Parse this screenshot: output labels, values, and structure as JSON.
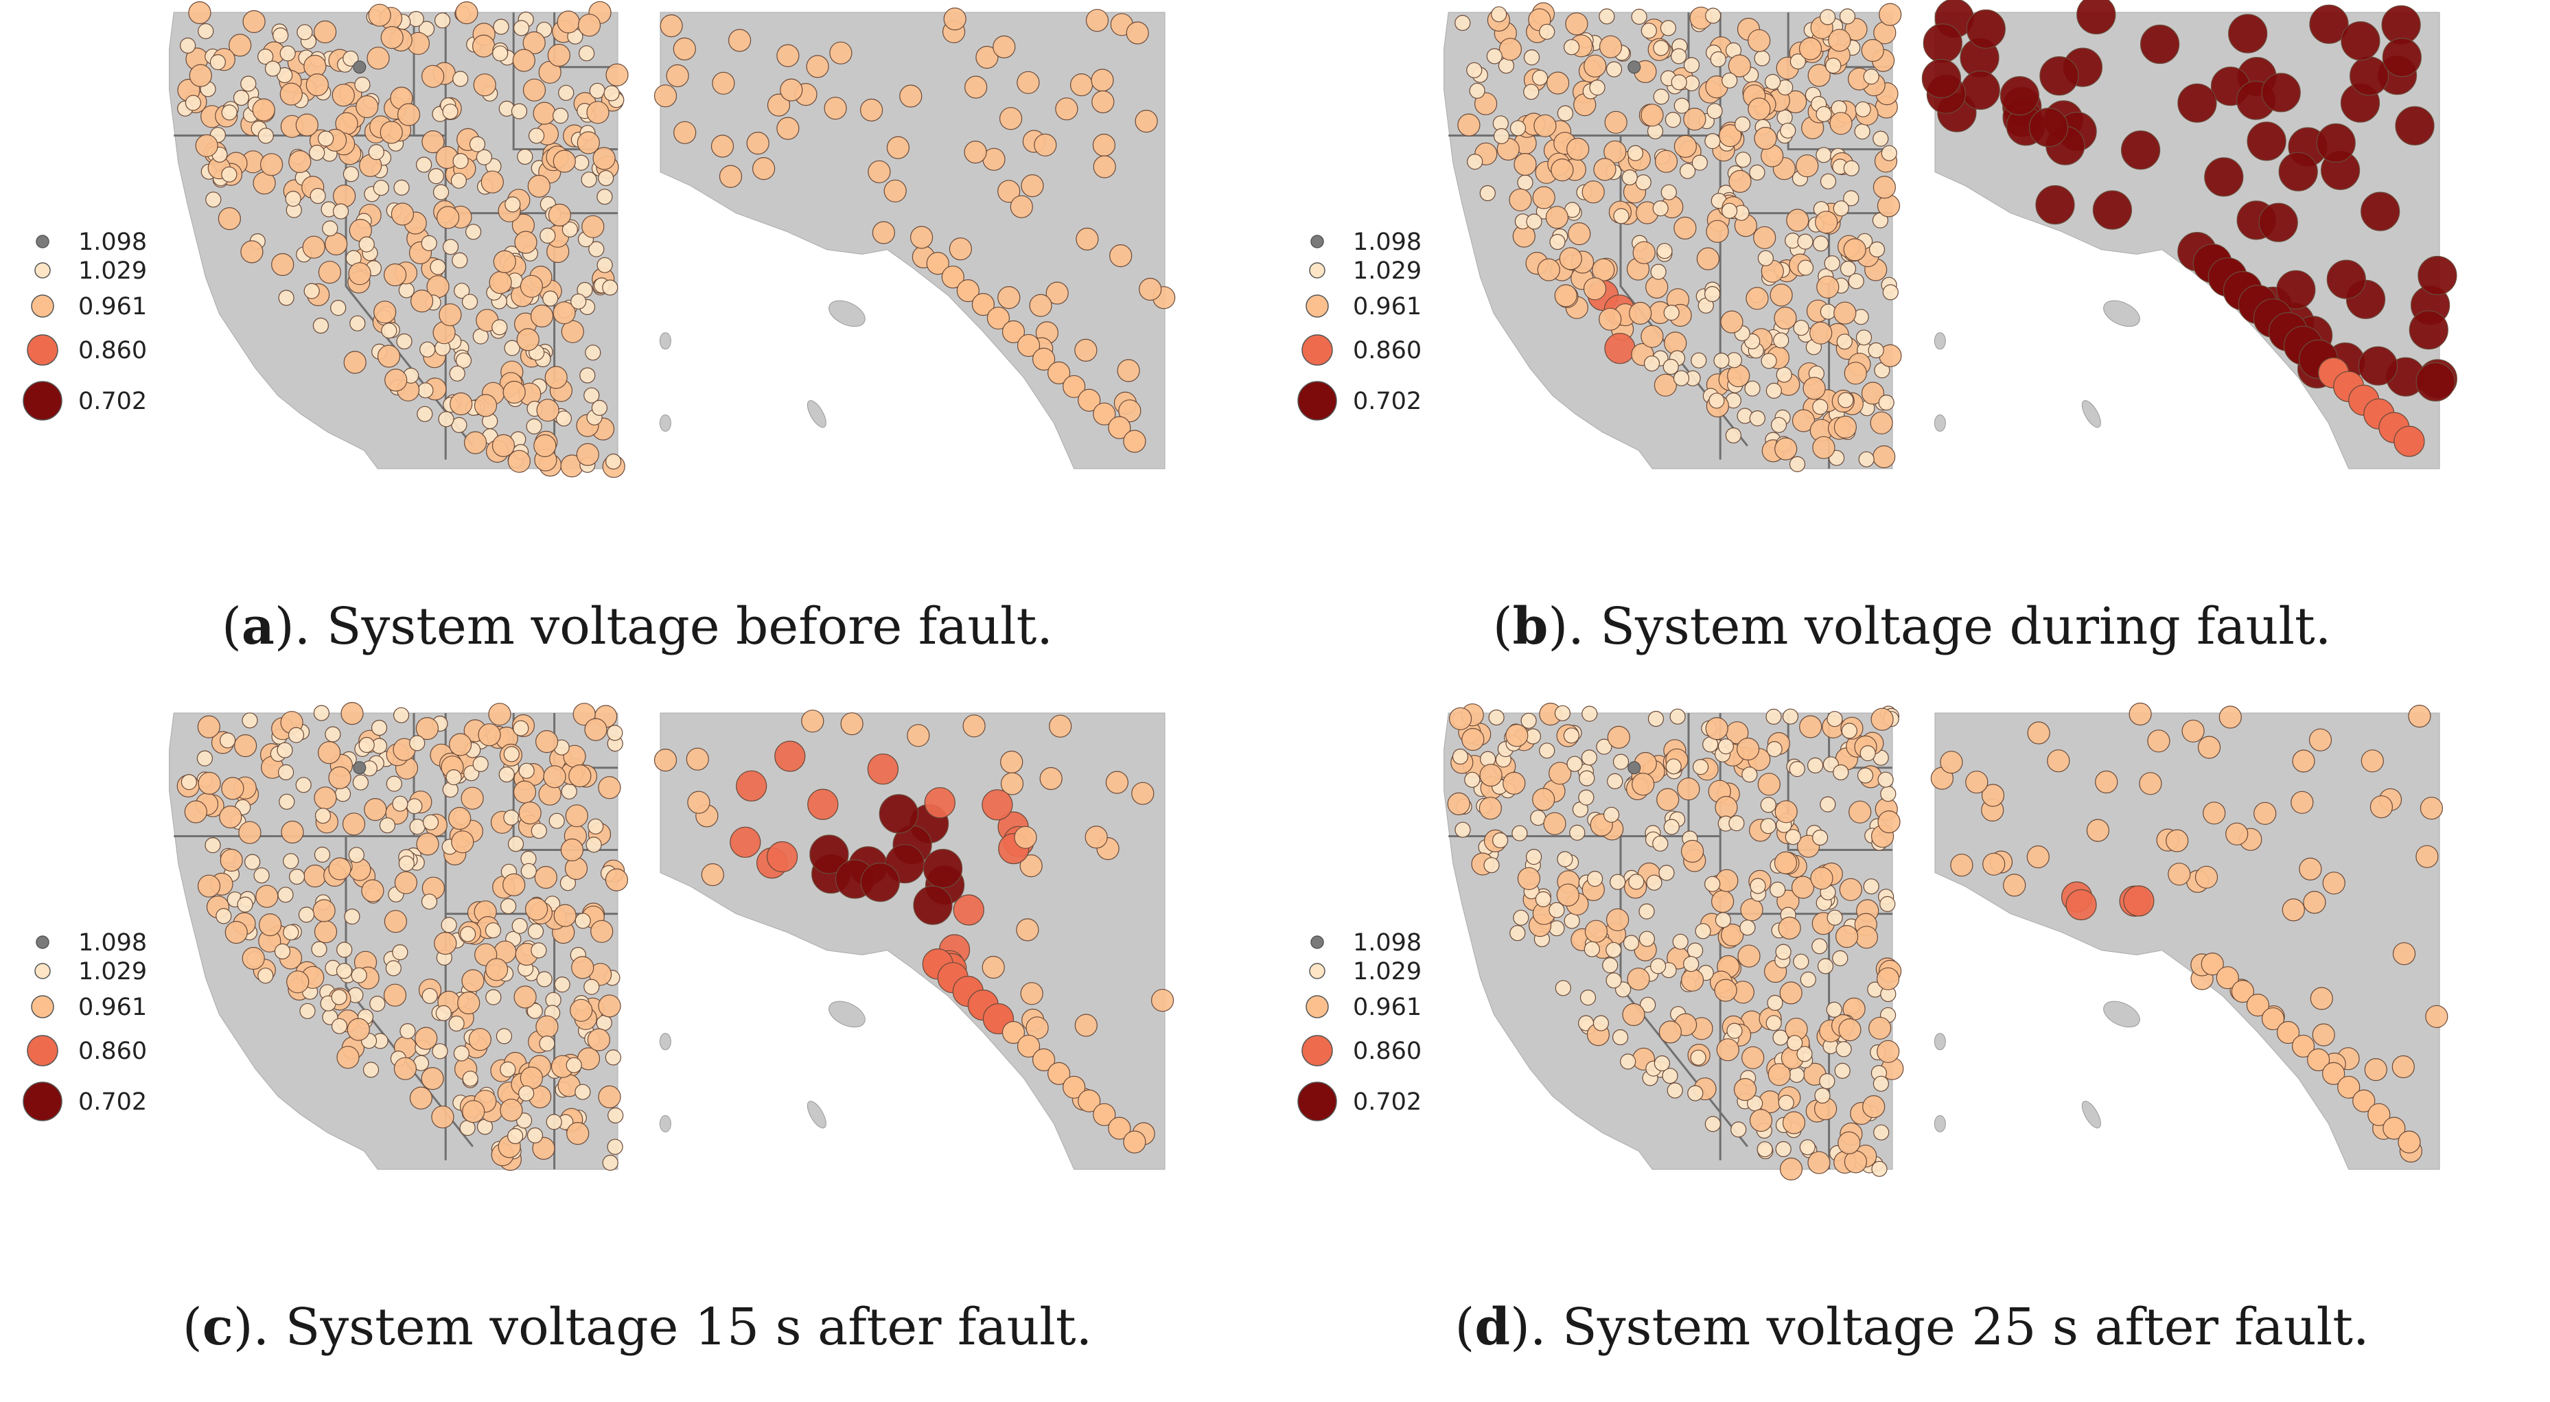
{
  "legend": {
    "values": [
      "1.098",
      "1.029",
      "0.961",
      "0.860",
      "0.702"
    ],
    "colors": [
      "#7a7a7a",
      "#fde5c6",
      "#fbc08e",
      "#ee6b4e",
      "#7d0b0b"
    ]
  },
  "panels": [
    {
      "letter": "a",
      "caption": "). System voltage before fault."
    },
    {
      "letter": "b",
      "caption": "). System voltage during fault."
    },
    {
      "letter": "c",
      "caption": "). System voltage 15 s after fault."
    },
    {
      "letter": "d",
      "caption": "). System voltage 25 s after fault."
    }
  ],
  "colors": {
    "land": "#c8c8c8",
    "border": "#707070",
    "marker_stroke": "#6a4a3a"
  }
}
